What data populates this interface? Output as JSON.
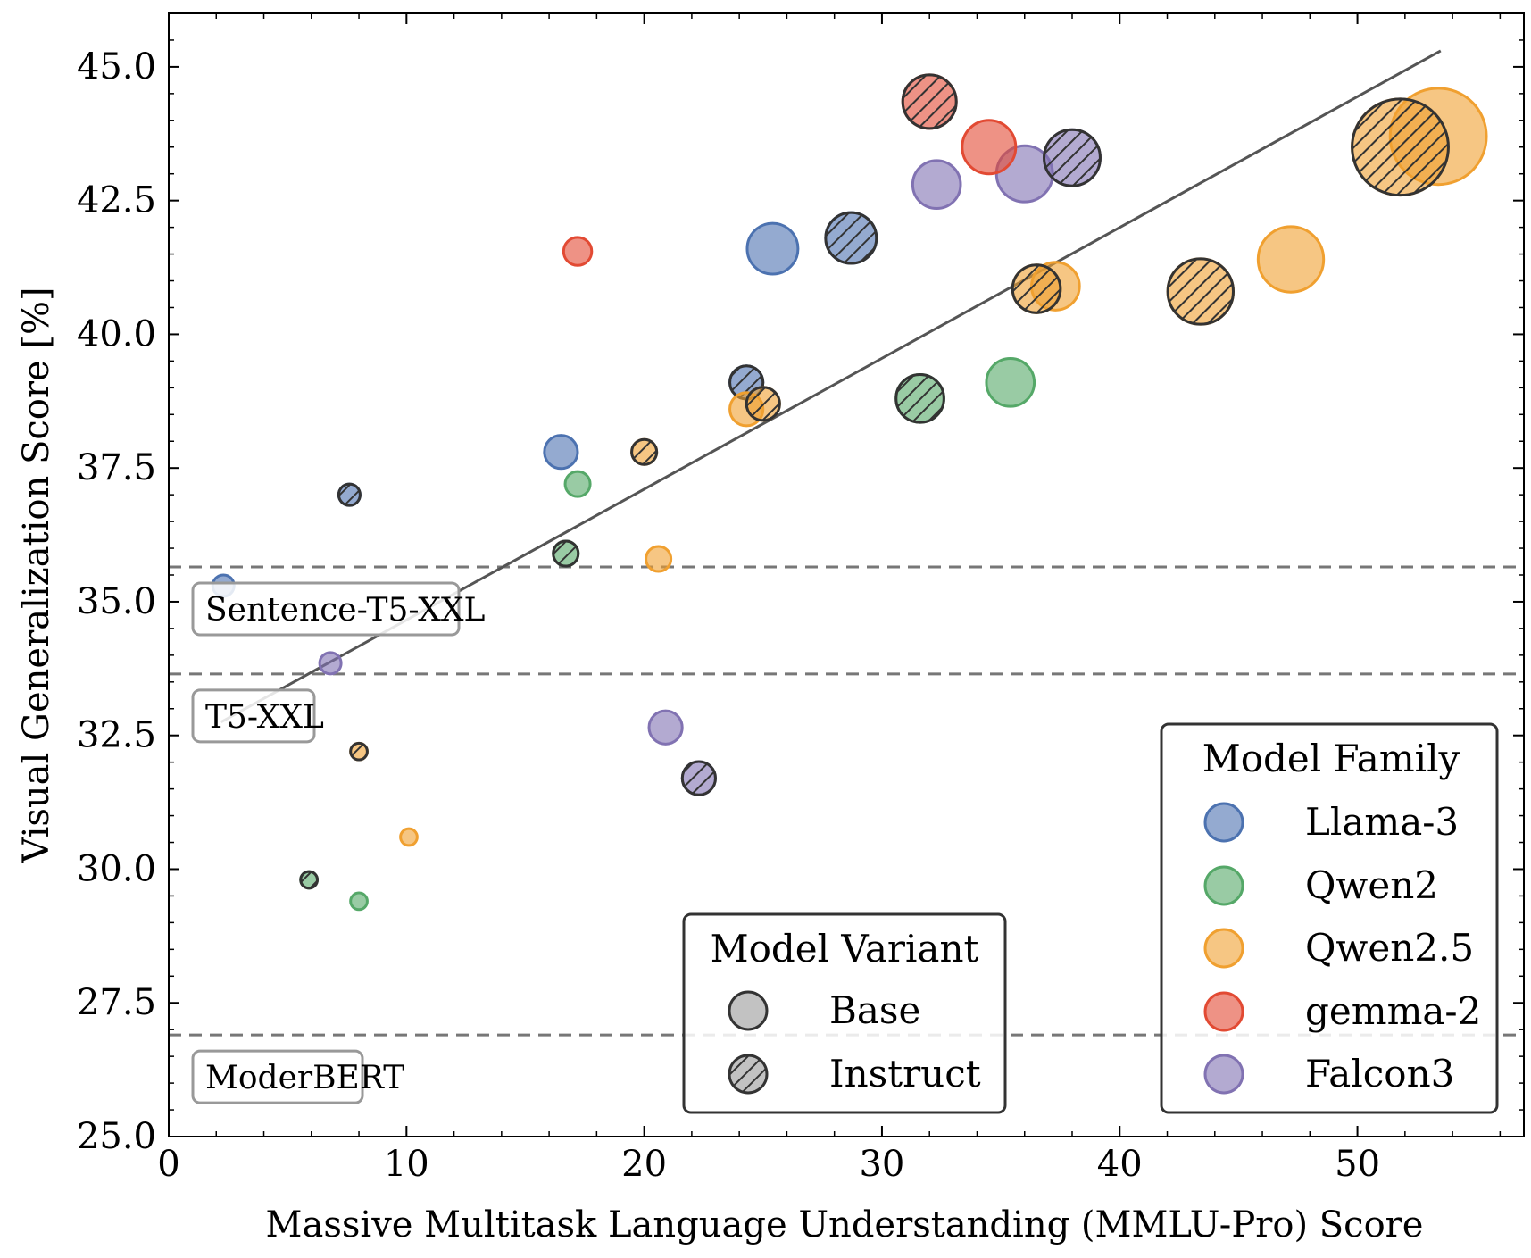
{
  "chart_data": {
    "type": "scatter",
    "title": "",
    "xlabel": "Massive Multitask Language Understanding (MMLU-Pro) Score",
    "ylabel": "Visual Generalization Score [%]",
    "xlim": [
      0,
      57
    ],
    "ylim": [
      25,
      46
    ],
    "x_ticks": [
      "0",
      "10",
      "20",
      "30",
      "40",
      "50"
    ],
    "y_ticks": [
      "25.0",
      "27.5",
      "30.0",
      "32.5",
      "35.0",
      "37.5",
      "40.0",
      "42.5",
      "45.0"
    ],
    "grid": false,
    "families": [
      {
        "name": "Llama-3",
        "color": "#4c72b0"
      },
      {
        "name": "Qwen2",
        "color": "#55a868"
      },
      {
        "name": "Qwen2.5",
        "color": "#f0a030"
      },
      {
        "name": "gemma-2",
        "color": "#e24a33"
      },
      {
        "name": "Falcon3",
        "color": "#8172b2"
      }
    ],
    "variants": [
      {
        "name": "Base",
        "hatched": false
      },
      {
        "name": "Instruct",
        "hatched": true
      }
    ],
    "points": [
      {
        "family": "Llama-3",
        "variant": "Base",
        "x": 2.3,
        "y": 35.3,
        "size": 1
      },
      {
        "family": "Llama-3",
        "variant": "Instruct",
        "x": 7.6,
        "y": 37.0,
        "size": 1
      },
      {
        "family": "Llama-3",
        "variant": "Base",
        "x": 16.5,
        "y": 37.8,
        "size": 3
      },
      {
        "family": "Llama-3",
        "variant": "Instruct",
        "x": 24.3,
        "y": 39.1,
        "size": 3
      },
      {
        "family": "Llama-3",
        "variant": "Base",
        "x": 25.4,
        "y": 41.6,
        "size": 8
      },
      {
        "family": "Llama-3",
        "variant": "Instruct",
        "x": 28.7,
        "y": 41.8,
        "size": 8
      },
      {
        "family": "Qwen2",
        "variant": "Instruct",
        "x": 5.9,
        "y": 29.8,
        "size": 0.5
      },
      {
        "family": "Qwen2",
        "variant": "Base",
        "x": 8.0,
        "y": 29.4,
        "size": 0.5
      },
      {
        "family": "Qwen2",
        "variant": "Instruct",
        "x": 16.7,
        "y": 35.9,
        "size": 1.5
      },
      {
        "family": "Qwen2",
        "variant": "Base",
        "x": 17.2,
        "y": 37.2,
        "size": 1.5
      },
      {
        "family": "Qwen2",
        "variant": "Instruct",
        "x": 31.6,
        "y": 38.8,
        "size": 7
      },
      {
        "family": "Qwen2",
        "variant": "Base",
        "x": 35.4,
        "y": 39.1,
        "size": 7
      },
      {
        "family": "Qwen2.5",
        "variant": "Instruct",
        "x": 8.0,
        "y": 32.2,
        "size": 0.5
      },
      {
        "family": "Qwen2.5",
        "variant": "Base",
        "x": 10.1,
        "y": 30.6,
        "size": 0.5
      },
      {
        "family": "Qwen2.5",
        "variant": "Base",
        "x": 20.6,
        "y": 35.8,
        "size": 1.5
      },
      {
        "family": "Qwen2.5",
        "variant": "Instruct",
        "x": 20.0,
        "y": 37.8,
        "size": 1.5
      },
      {
        "family": "Qwen2.5",
        "variant": "Base",
        "x": 24.3,
        "y": 38.6,
        "size": 3
      },
      {
        "family": "Qwen2.5",
        "variant": "Instruct",
        "x": 25.0,
        "y": 38.7,
        "size": 3
      },
      {
        "family": "Qwen2.5",
        "variant": "Base",
        "x": 37.3,
        "y": 40.9,
        "size": 7
      },
      {
        "family": "Qwen2.5",
        "variant": "Instruct",
        "x": 36.5,
        "y": 40.85,
        "size": 7
      },
      {
        "family": "Qwen2.5",
        "variant": "Base",
        "x": 47.2,
        "y": 41.4,
        "size": 14
      },
      {
        "family": "Qwen2.5",
        "variant": "Instruct",
        "x": 43.4,
        "y": 40.8,
        "size": 14
      },
      {
        "family": "Qwen2.5",
        "variant": "Base",
        "x": 53.4,
        "y": 43.7,
        "size": 32
      },
      {
        "family": "Qwen2.5",
        "variant": "Instruct",
        "x": 51.8,
        "y": 43.5,
        "size": 32
      },
      {
        "family": "gemma-2",
        "variant": "Base",
        "x": 17.2,
        "y": 41.55,
        "size": 2
      },
      {
        "family": "gemma-2",
        "variant": "Base",
        "x": 34.5,
        "y": 43.5,
        "size": 9
      },
      {
        "family": "gemma-2",
        "variant": "Instruct",
        "x": 32.0,
        "y": 44.35,
        "size": 9
      },
      {
        "family": "Falcon3",
        "variant": "Base",
        "x": 6.8,
        "y": 33.85,
        "size": 1
      },
      {
        "family": "Falcon3",
        "variant": "Base",
        "x": 20.9,
        "y": 32.65,
        "size": 3
      },
      {
        "family": "Falcon3",
        "variant": "Instruct",
        "x": 22.3,
        "y": 31.7,
        "size": 3
      },
      {
        "family": "Falcon3",
        "variant": "Base",
        "x": 32.3,
        "y": 42.8,
        "size": 7
      },
      {
        "family": "Falcon3",
        "variant": "Base",
        "x": 36.0,
        "y": 43.0,
        "size": 10
      },
      {
        "family": "Falcon3",
        "variant": "Instruct",
        "x": 38.0,
        "y": 43.3,
        "size": 10
      }
    ],
    "trend_line": {
      "x": [
        2.2,
        53.5
      ],
      "y": [
        32.75,
        45.3
      ]
    },
    "baselines": [
      {
        "label": "Sentence-T5-XXL",
        "y": 35.65
      },
      {
        "label": "T5-XXL",
        "y": 33.65
      },
      {
        "label": "ModerBERT",
        "y": 26.9
      }
    ],
    "legend_family": {
      "title": "Model Family",
      "placement": "lower right"
    },
    "legend_variant": {
      "title": "Model Variant",
      "placement": "lower center"
    }
  }
}
